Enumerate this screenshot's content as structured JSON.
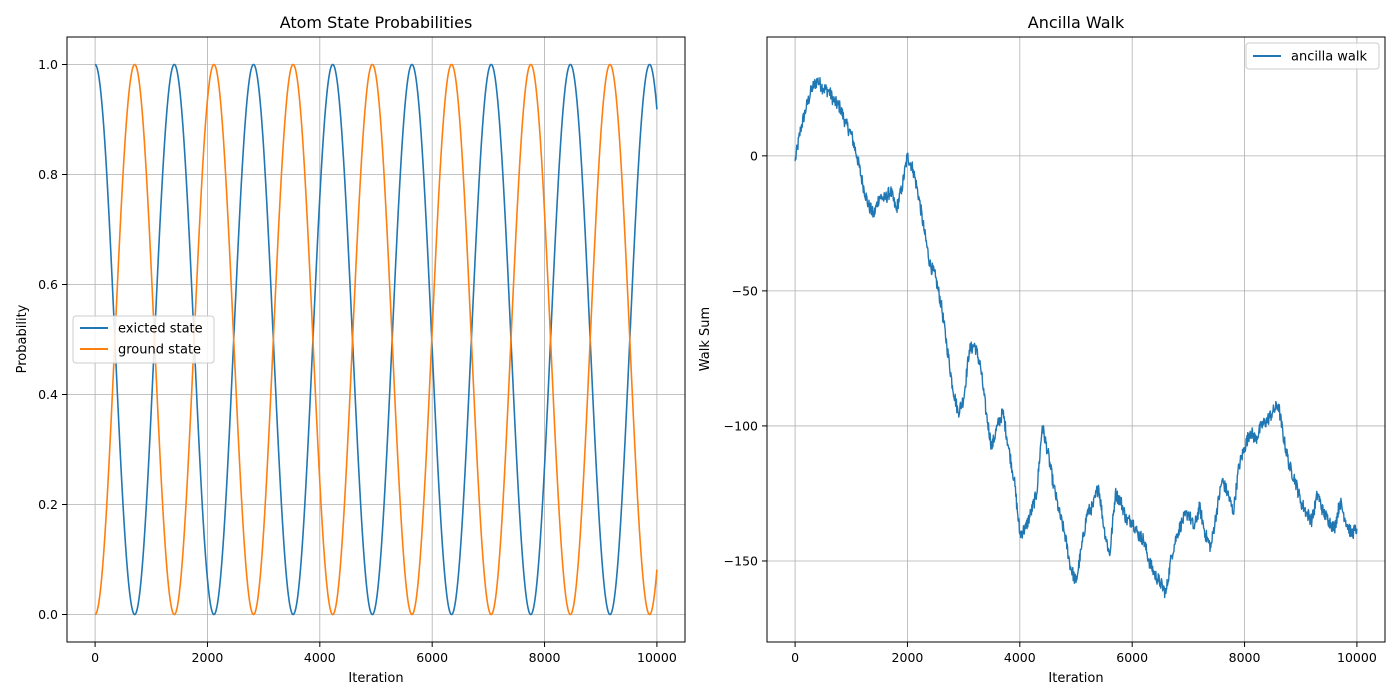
{
  "chart_data": [
    {
      "type": "line",
      "title": "Atom State Probabilities",
      "xlabel": "Iteration",
      "ylabel": "Probability",
      "xlim": [
        -500,
        10500
      ],
      "ylim": [
        -0.05,
        1.05
      ],
      "xticks": [
        0,
        2000,
        4000,
        6000,
        8000,
        10000
      ],
      "yticks": [
        0.0,
        0.2,
        0.4,
        0.6,
        0.8,
        1.0
      ],
      "ytick_labels": [
        "0.0",
        "0.2",
        "0.4",
        "0.6",
        "0.8",
        "1.0"
      ],
      "grid": true,
      "legend_placement": "center-left",
      "oscillation": {
        "period_iterations": 1410,
        "iterations": 10000
      },
      "series": [
        {
          "name": "exicted state",
          "color": "#1f77b4",
          "start_value": 1.0,
          "form": "cos^2"
        },
        {
          "name": "ground state",
          "color": "#ff7f0e",
          "start_value": 0.0,
          "form": "sin^2"
        }
      ]
    },
    {
      "type": "line",
      "title": "Ancilla Walk",
      "xlabel": "Iteration",
      "ylabel": "Walk Sum",
      "xlim": [
        -500,
        10500
      ],
      "ylim": [
        -180,
        44
      ],
      "xticks": [
        0,
        2000,
        4000,
        6000,
        8000,
        10000
      ],
      "yticks": [
        -150,
        -100,
        -50,
        0
      ],
      "ytick_labels": [
        "−150",
        "−100",
        "−50",
        "0"
      ],
      "grid": true,
      "legend_placement": "top-right",
      "series": [
        {
          "name": "ancilla walk",
          "color": "#1f77b4",
          "x": [
            0,
            100,
            200,
            300,
            400,
            500,
            600,
            700,
            800,
            900,
            1000,
            1100,
            1200,
            1300,
            1400,
            1500,
            1600,
            1700,
            1800,
            1900,
            2000,
            2100,
            2200,
            2300,
            2400,
            2500,
            2600,
            2700,
            2800,
            2900,
            3000,
            3100,
            3200,
            3300,
            3400,
            3500,
            3600,
            3700,
            3800,
            3900,
            4000,
            4100,
            4200,
            4300,
            4400,
            4500,
            4600,
            4700,
            4800,
            4900,
            5000,
            5100,
            5200,
            5300,
            5400,
            5500,
            5600,
            5700,
            5800,
            5900,
            6000,
            6100,
            6200,
            6300,
            6400,
            6500,
            6600,
            6700,
            6800,
            6900,
            7000,
            7100,
            7200,
            7300,
            7400,
            7500,
            7600,
            7700,
            7800,
            7900,
            8000,
            8100,
            8200,
            8300,
            8400,
            8500,
            8600,
            8700,
            8800,
            8900,
            9000,
            9100,
            9200,
            9300,
            9400,
            9500,
            9600,
            9700,
            9800,
            9900,
            10000
          ],
          "y": [
            -2,
            10,
            18,
            25,
            28,
            25,
            24,
            20,
            18,
            12,
            8,
            0,
            -10,
            -18,
            -22,
            -15,
            -16,
            -13,
            -20,
            -12,
            0,
            -5,
            -15,
            -28,
            -40,
            -45,
            -55,
            -70,
            -85,
            -95,
            -90,
            -72,
            -70,
            -78,
            -95,
            -108,
            -100,
            -95,
            -108,
            -120,
            -140,
            -138,
            -132,
            -125,
            -100,
            -110,
            -122,
            -132,
            -140,
            -152,
            -158,
            -145,
            -132,
            -130,
            -122,
            -138,
            -148,
            -125,
            -128,
            -135,
            -135,
            -140,
            -142,
            -150,
            -155,
            -158,
            -162,
            -148,
            -140,
            -135,
            -132,
            -138,
            -130,
            -140,
            -145,
            -132,
            -120,
            -125,
            -132,
            -115,
            -108,
            -102,
            -105,
            -100,
            -98,
            -95,
            -92,
            -105,
            -115,
            -120,
            -128,
            -132,
            -135,
            -125,
            -132,
            -135,
            -138,
            -128,
            -135,
            -140,
            -138
          ]
        }
      ]
    }
  ]
}
